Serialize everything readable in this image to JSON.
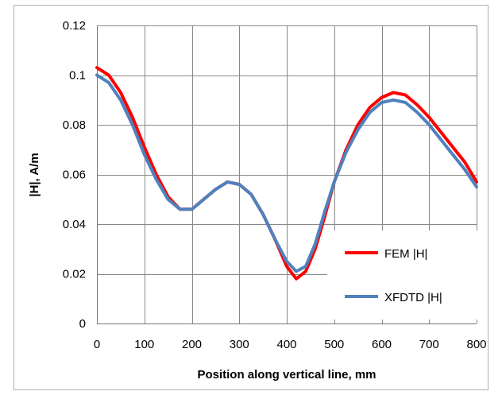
{
  "chart_data": {
    "type": "line",
    "title": "",
    "xlabel": "Position along vertical line, mm",
    "ylabel": "|H|, A/m",
    "xlim": [
      0,
      800
    ],
    "ylim": [
      0,
      0.12
    ],
    "x_ticks": [
      0,
      100,
      200,
      300,
      400,
      500,
      600,
      700,
      800
    ],
    "y_ticks": [
      0,
      0.02,
      0.04,
      0.06,
      0.08,
      0.1,
      0.12
    ],
    "x_tick_labels": [
      "0",
      "100",
      "200",
      "300",
      "400",
      "500",
      "600",
      "700",
      "800"
    ],
    "y_tick_labels": [
      "0",
      "0.02",
      "0.04",
      "0.06",
      "0.08",
      "0.1",
      "0.12"
    ],
    "grid": true,
    "legend_position": "lower-right",
    "series": [
      {
        "name": "FEM |H|",
        "color": "#ff0000",
        "x": [
          0,
          25,
          50,
          75,
          100,
          125,
          150,
          175,
          200,
          225,
          250,
          275,
          300,
          325,
          350,
          375,
          400,
          420,
          440,
          460,
          480,
          500,
          525,
          550,
          575,
          600,
          625,
          650,
          675,
          700,
          725,
          750,
          775,
          800
        ],
        "y": [
          0.103,
          0.1,
          0.093,
          0.083,
          0.071,
          0.06,
          0.051,
          0.046,
          0.046,
          0.05,
          0.054,
          0.057,
          0.056,
          0.052,
          0.044,
          0.034,
          0.023,
          0.018,
          0.021,
          0.03,
          0.043,
          0.057,
          0.07,
          0.08,
          0.087,
          0.091,
          0.093,
          0.092,
          0.088,
          0.083,
          0.077,
          0.071,
          0.065,
          0.057
        ]
      },
      {
        "name": "XFDTD |H|",
        "color": "#4f81bd",
        "x": [
          0,
          25,
          50,
          75,
          100,
          125,
          150,
          175,
          200,
          225,
          250,
          275,
          300,
          325,
          350,
          375,
          400,
          420,
          440,
          460,
          480,
          500,
          525,
          550,
          575,
          600,
          625,
          650,
          675,
          700,
          725,
          750,
          775,
          800
        ],
        "y": [
          0.1,
          0.097,
          0.09,
          0.08,
          0.068,
          0.058,
          0.05,
          0.046,
          0.046,
          0.05,
          0.054,
          0.057,
          0.056,
          0.052,
          0.044,
          0.034,
          0.025,
          0.021,
          0.023,
          0.032,
          0.045,
          0.057,
          0.069,
          0.078,
          0.085,
          0.089,
          0.09,
          0.089,
          0.085,
          0.08,
          0.074,
          0.068,
          0.062,
          0.055
        ]
      }
    ]
  }
}
